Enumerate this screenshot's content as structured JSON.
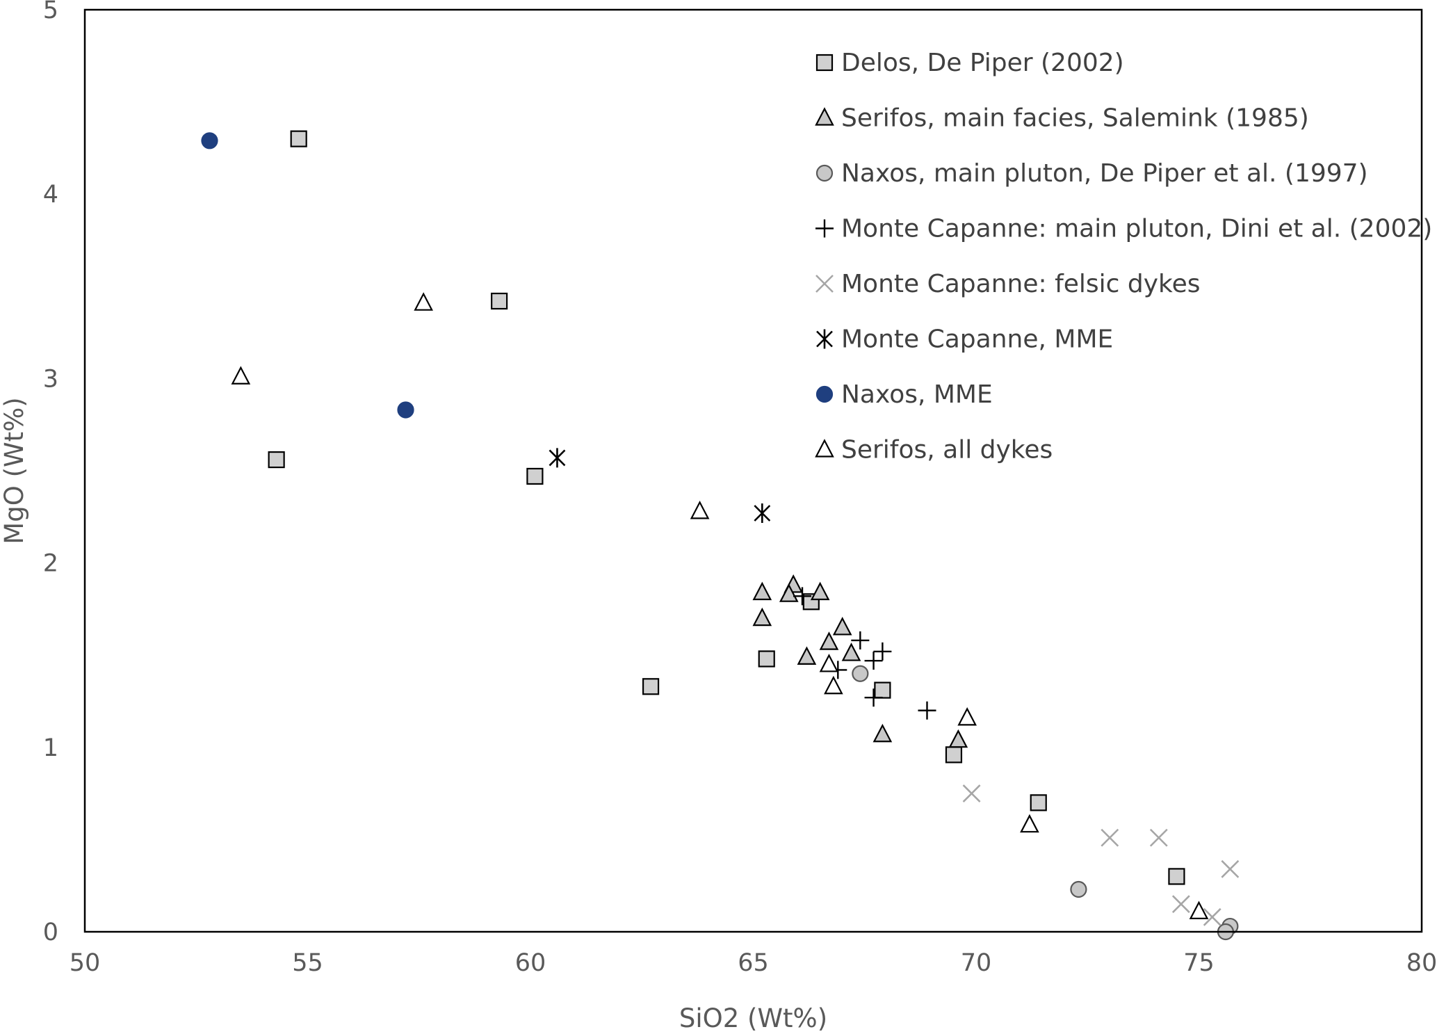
{
  "chart_data": {
    "type": "scatter",
    "title": "",
    "xlabel": "SiO2 (Wt%)",
    "ylabel": "MgO (Wt%)",
    "xlim": [
      50,
      80
    ],
    "ylim": [
      0,
      5
    ],
    "x_ticks": [
      "50",
      "55",
      "60",
      "65",
      "70",
      "75",
      "80"
    ],
    "y_ticks": [
      "0",
      "1",
      "2",
      "3",
      "4",
      "5"
    ],
    "grid": false,
    "legend_position": "top-right",
    "series": [
      {
        "name": "Delos, De Piper (2002)",
        "marker": "square",
        "fill": "#d0d0d0",
        "stroke": "#000000",
        "x": [
          54.8,
          59.3,
          54.3,
          60.1,
          62.7,
          65.3,
          66.3,
          67.9,
          69.5,
          71.4,
          74.5
        ],
        "y": [
          4.3,
          3.42,
          2.56,
          2.47,
          1.33,
          1.48,
          1.79,
          1.31,
          0.96,
          0.7,
          0.3
        ]
      },
      {
        "name": "Serifos, main facies, Salemink (1985)",
        "marker": "triangle",
        "fill": "#c8c8c8",
        "stroke": "#000000",
        "x": [
          65.9,
          65.8,
          66.5,
          65.2,
          65.2,
          67.0,
          66.7,
          67.2,
          66.2,
          67.9,
          69.6
        ],
        "y": [
          1.88,
          1.83,
          1.84,
          1.84,
          1.7,
          1.65,
          1.57,
          1.51,
          1.49,
          1.07,
          1.04
        ]
      },
      {
        "name": "Naxos, main pluton, De Piper et al. (1997)",
        "marker": "circle",
        "fill": "#c8c8c8",
        "stroke": "#595959",
        "x": [
          67.4,
          72.3,
          75.7,
          75.6
        ],
        "y": [
          1.4,
          0.23,
          0.03,
          0.0
        ]
      },
      {
        "name": "Monte Capanne: main pluton, Dini et al. (2002)",
        "marker": "plus",
        "fill": "none",
        "stroke": "#000000",
        "x": [
          66.1,
          67.4,
          67.9,
          67.7,
          66.9,
          67.7,
          68.9
        ],
        "y": [
          1.82,
          1.58,
          1.52,
          1.47,
          1.42,
          1.27,
          1.2
        ]
      },
      {
        "name": "Monte Capanne: felsic dykes",
        "marker": "x",
        "fill": "none",
        "stroke": "#a6a6a6",
        "x": [
          69.9,
          73.0,
          74.1,
          75.7,
          74.6,
          75.3
        ],
        "y": [
          0.75,
          0.51,
          0.51,
          0.34,
          0.15,
          0.08
        ]
      },
      {
        "name": "Monte Capanne, MME",
        "marker": "asterisk",
        "fill": "none",
        "stroke": "#000000",
        "x": [
          60.6,
          65.2
        ],
        "y": [
          2.57,
          2.27
        ]
      },
      {
        "name": "Naxos, MME",
        "marker": "circle",
        "fill": "#1f3f7f",
        "stroke": "#1f3f7f",
        "x": [
          52.8,
          57.2
        ],
        "y": [
          4.29,
          2.83
        ]
      },
      {
        "name": "Serifos, all dykes",
        "marker": "triangle",
        "fill": "#ffffff",
        "stroke": "#000000",
        "x": [
          57.6,
          53.5,
          63.8,
          66.7,
          66.8,
          69.8,
          71.2,
          75.0
        ],
        "y": [
          3.41,
          3.01,
          2.28,
          1.45,
          1.33,
          1.16,
          0.58,
          0.11
        ]
      }
    ]
  }
}
